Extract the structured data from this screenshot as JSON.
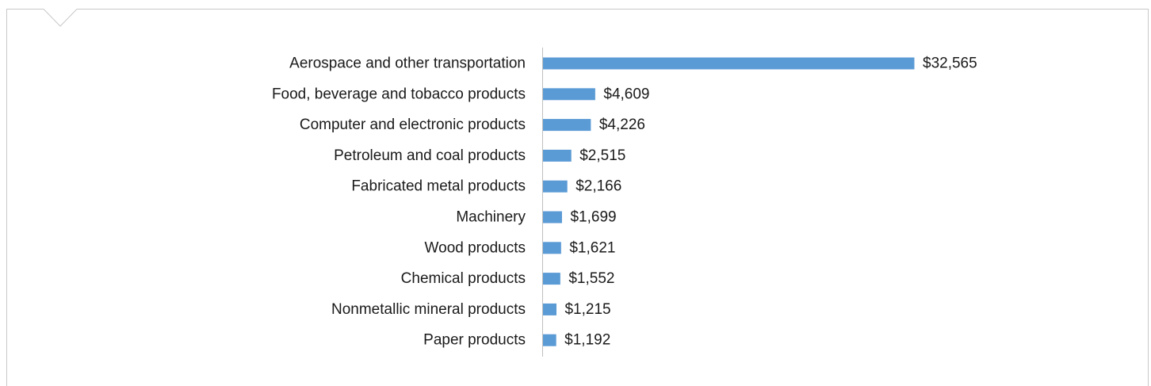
{
  "chart_data": {
    "type": "bar",
    "orientation": "horizontal",
    "categories": [
      "Aerospace and other transportation",
      "Food, beverage and tobacco products",
      "Computer and electronic products",
      "Petroleum and coal products",
      "Fabricated metal products",
      "Machinery",
      "Wood products",
      "Chemical products",
      "Nonmetallic mineral products",
      "Paper products"
    ],
    "values": [
      32565,
      4609,
      4226,
      2515,
      2166,
      1699,
      1621,
      1552,
      1215,
      1192
    ],
    "value_labels": [
      "$32,565",
      "$4,609",
      "$4,226",
      "$2,515",
      "$2,166",
      "$1,699",
      "$1,621",
      "$1,552",
      "$1,215",
      "$1,192"
    ],
    "title": "",
    "xlabel": "",
    "ylabel": "",
    "xlim": [
      0,
      32565
    ],
    "grid": false,
    "legend": "none",
    "bar_color": "#5b9bd5",
    "axis_color": "#bfbfbf",
    "frame_color": "#c8c8c8"
  }
}
